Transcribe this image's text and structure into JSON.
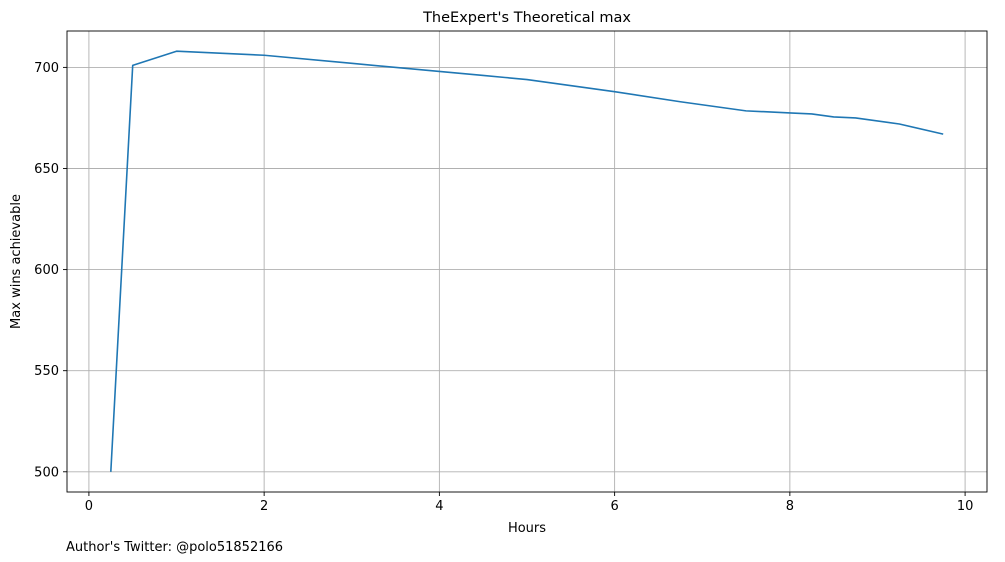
{
  "chart_data": {
    "type": "line",
    "title": "TheExpert's Theoretical max",
    "xlabel": "Hours",
    "ylabel": "Max wins achievable",
    "xlim": [
      -0.25,
      10.25
    ],
    "ylim": [
      490,
      718
    ],
    "xticks": [
      0,
      2,
      4,
      6,
      8,
      10
    ],
    "yticks": [
      500,
      550,
      600,
      650,
      700
    ],
    "grid": true,
    "line_color": "#1f77b4",
    "series": [
      {
        "x": [
          0.25,
          0.5,
          1.0,
          2.0,
          3.0,
          4.0,
          4.25,
          4.5,
          4.75,
          5.0,
          6.0,
          6.75,
          7.5,
          8.0,
          8.25,
          8.5,
          8.75,
          9.25,
          9.75
        ],
        "y": [
          500,
          701,
          708,
          706,
          702,
          698,
          697,
          696,
          695,
          694,
          688,
          683,
          678.5,
          677.5,
          677,
          675.5,
          675,
          672,
          667
        ]
      }
    ]
  },
  "footer": {
    "text": "Author's Twitter: @polo51852166"
  }
}
